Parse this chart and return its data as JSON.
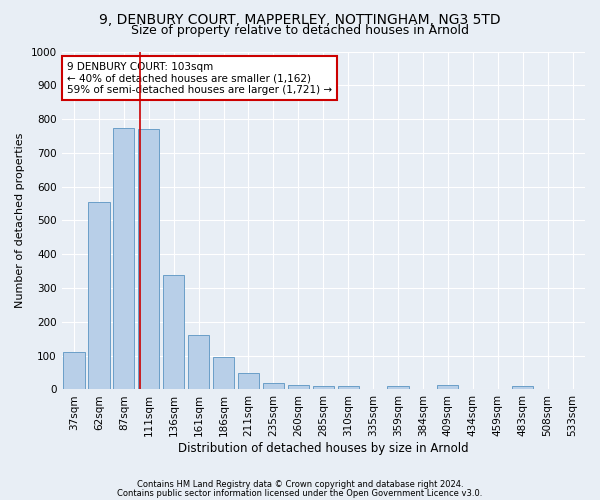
{
  "title1": "9, DENBURY COURT, MAPPERLEY, NOTTINGHAM, NG3 5TD",
  "title2": "Size of property relative to detached houses in Arnold",
  "xlabel": "Distribution of detached houses by size in Arnold",
  "ylabel": "Number of detached properties",
  "categories": [
    "37sqm",
    "62sqm",
    "87sqm",
    "111sqm",
    "136sqm",
    "161sqm",
    "186sqm",
    "211sqm",
    "235sqm",
    "260sqm",
    "285sqm",
    "310sqm",
    "335sqm",
    "359sqm",
    "384sqm",
    "409sqm",
    "434sqm",
    "459sqm",
    "483sqm",
    "508sqm",
    "533sqm"
  ],
  "values": [
    110,
    555,
    775,
    770,
    340,
    160,
    97,
    50,
    18,
    12,
    10,
    10,
    0,
    10,
    0,
    12,
    0,
    0,
    10,
    0,
    0
  ],
  "bar_color": "#b8cfe8",
  "bar_edge_color": "#6a9fc8",
  "background_color": "#e8eef5",
  "vline_color": "#cc0000",
  "annotation_line1": "9 DENBURY COURT: 103sqm",
  "annotation_line2": "← 40% of detached houses are smaller (1,162)",
  "annotation_line3": "59% of semi-detached houses are larger (1,721) →",
  "annotation_box_color": "#ffffff",
  "annotation_box_edge": "#cc0000",
  "ylim": [
    0,
    1000
  ],
  "yticks": [
    0,
    100,
    200,
    300,
    400,
    500,
    600,
    700,
    800,
    900,
    1000
  ],
  "footer1": "Contains HM Land Registry data © Crown copyright and database right 2024.",
  "footer2": "Contains public sector information licensed under the Open Government Licence v3.0.",
  "title1_fontsize": 10,
  "title2_fontsize": 9,
  "xlabel_fontsize": 8.5,
  "ylabel_fontsize": 8,
  "tick_fontsize": 7.5,
  "annotation_fontsize": 7.5,
  "footer_fontsize": 6
}
